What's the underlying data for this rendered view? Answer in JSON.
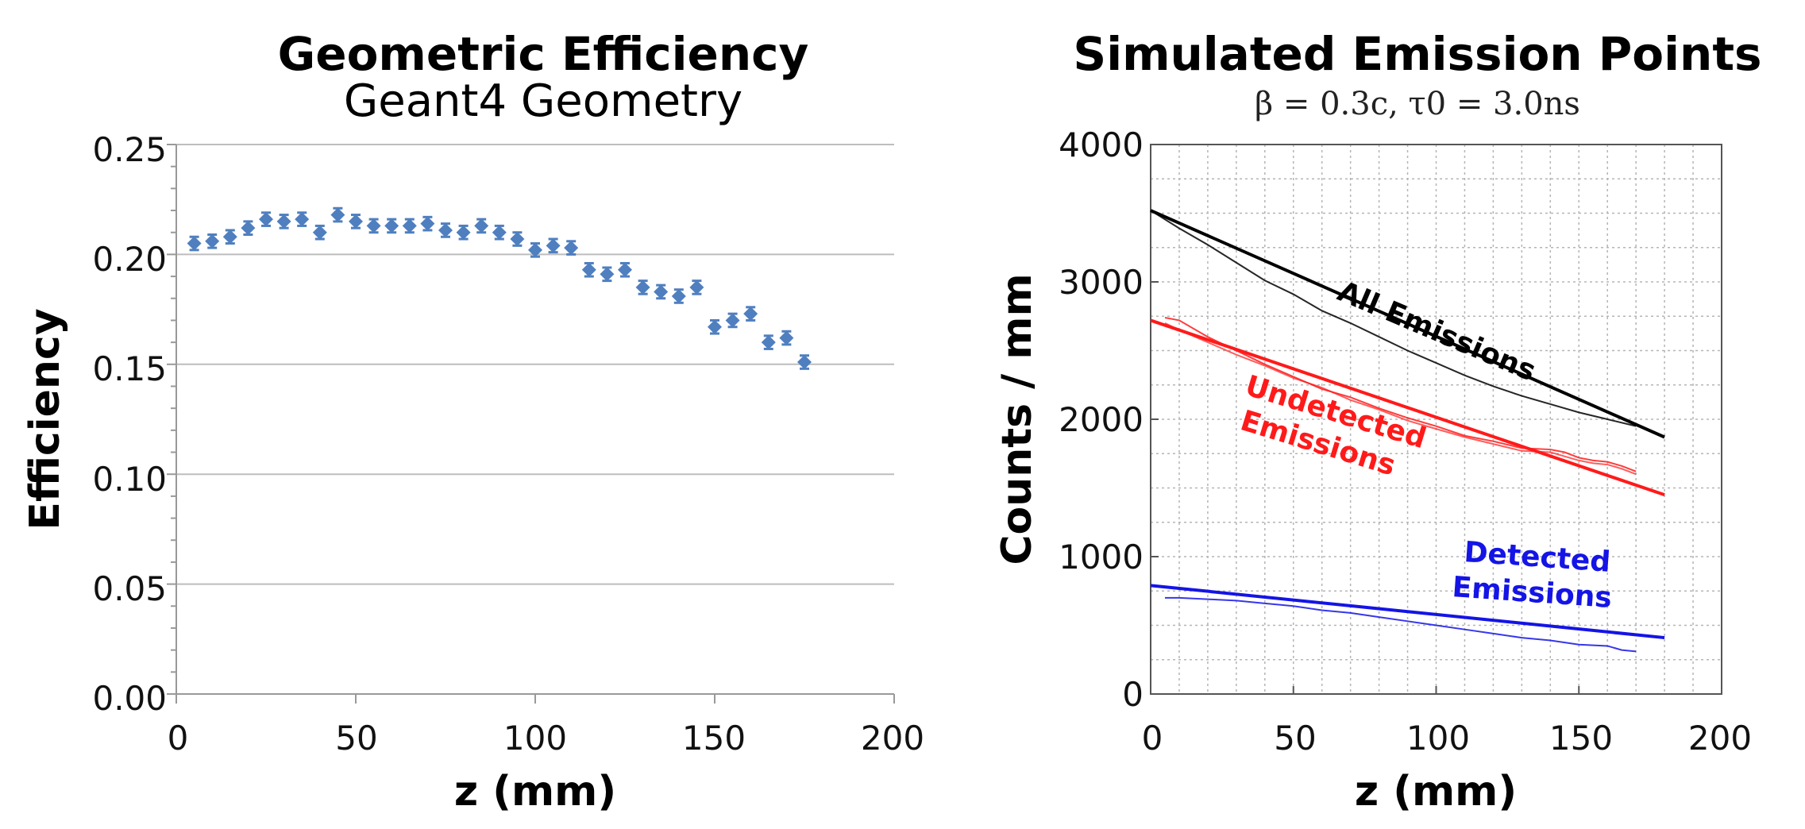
{
  "chart_data": [
    {
      "type": "scatter",
      "title": "Geometric Efficiency",
      "subtitle": "Geant4 Geometry",
      "xlabel": "z (mm)",
      "ylabel": "Efficiency",
      "xlim": [
        0,
        200
      ],
      "ylim": [
        0,
        0.25
      ],
      "grid": "horizontal",
      "x_tick_labels": [
        "0",
        "50",
        "100",
        "150",
        "200"
      ],
      "y_tick_labels": [
        "0.00",
        "0.05",
        "0.10",
        "0.15",
        "0.20",
        "0.25"
      ],
      "marker_color": "#4f7fbf",
      "series": [
        {
          "name": "Efficiency",
          "x": [
            5,
            10,
            15,
            20,
            25,
            30,
            35,
            40,
            45,
            50,
            55,
            60,
            65,
            70,
            75,
            80,
            85,
            90,
            95,
            100,
            105,
            110,
            115,
            120,
            125,
            130,
            135,
            140,
            145,
            150,
            155,
            160,
            165,
            170,
            175
          ],
          "y": [
            0.205,
            0.206,
            0.208,
            0.212,
            0.216,
            0.215,
            0.216,
            0.21,
            0.218,
            0.215,
            0.213,
            0.213,
            0.213,
            0.214,
            0.211,
            0.21,
            0.213,
            0.21,
            0.207,
            0.202,
            0.204,
            0.203,
            0.193,
            0.191,
            0.193,
            0.185,
            0.183,
            0.181,
            0.185,
            0.167,
            0.17,
            0.173,
            0.16,
            0.162,
            0.151
          ],
          "err": 0.003
        }
      ]
    },
    {
      "type": "line",
      "title": "Simulated Emission Points",
      "subtitle": "β = 0.3c, τ0 = 3.0ns",
      "xlabel": "z (mm)",
      "ylabel": "Counts / mm",
      "xlim": [
        0,
        200
      ],
      "ylim": [
        0,
        4000
      ],
      "grid": "dotted",
      "x_tick_labels": [
        "0",
        "50",
        "100",
        "150",
        "200"
      ],
      "y_tick_labels": [
        "0",
        "1000",
        "2000",
        "3000",
        "4000"
      ],
      "series": [
        {
          "name": "All Emissions",
          "color": "#000000",
          "fit": {
            "x": [
              0,
              180
            ],
            "y": [
              3520,
              1870
            ]
          },
          "x": [
            0,
            10,
            20,
            30,
            40,
            50,
            60,
            70,
            80,
            90,
            100,
            110,
            120,
            130,
            140,
            150,
            160,
            170
          ],
          "y": [
            3520,
            3390,
            3270,
            3140,
            3010,
            2910,
            2790,
            2700,
            2600,
            2500,
            2410,
            2320,
            2240,
            2170,
            2110,
            2050,
            2000,
            1950
          ]
        },
        {
          "name": "Undetected Emissions",
          "color": "#ff1a1a",
          "fit": {
            "x": [
              0,
              180
            ],
            "y": [
              2720,
              1450
            ]
          },
          "x": [
            5,
            10,
            20,
            30,
            40,
            50,
            60,
            70,
            80,
            90,
            100,
            110,
            120,
            130,
            140,
            145,
            150,
            155,
            160,
            165,
            170
          ],
          "y": [
            2740,
            2720,
            2600,
            2500,
            2400,
            2310,
            2220,
            2160,
            2080,
            2010,
            1950,
            1880,
            1840,
            1790,
            1780,
            1760,
            1720,
            1700,
            1690,
            1660,
            1620
          ],
          "y2": [
            2700,
            2650,
            2560,
            2470,
            2390,
            2300,
            2230,
            2140,
            2070,
            1990,
            1930,
            1870,
            1820,
            1770,
            1760,
            1730,
            1700,
            1680,
            1670,
            1640,
            1600
          ]
        },
        {
          "name": "Detected Emissions",
          "color": "#1414e6",
          "fit": {
            "x": [
              0,
              180
            ],
            "y": [
              790,
              410
            ]
          },
          "x": [
            5,
            10,
            20,
            30,
            40,
            50,
            60,
            70,
            80,
            90,
            100,
            110,
            120,
            130,
            140,
            150,
            160,
            165,
            170
          ],
          "y": [
            700,
            700,
            690,
            680,
            660,
            640,
            610,
            590,
            560,
            530,
            500,
            470,
            440,
            410,
            390,
            360,
            350,
            320,
            310
          ]
        }
      ],
      "annotations": [
        {
          "text": "All Emissions",
          "color": "#000000"
        },
        {
          "text": "Undetected",
          "color": "#ff1a1a"
        },
        {
          "text": "Emissions",
          "color": "#ff1a1a"
        },
        {
          "text": "Detected",
          "color": "#1414e6"
        },
        {
          "text": "Emissions",
          "color": "#1414e6"
        }
      ]
    }
  ]
}
